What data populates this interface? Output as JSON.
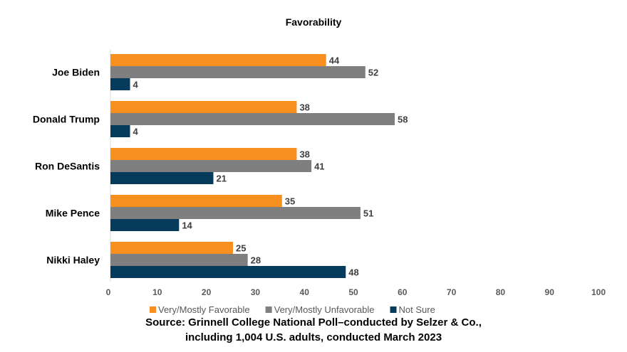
{
  "chart_data": {
    "type": "bar",
    "orientation": "horizontal",
    "title": "Favorability",
    "categories": [
      "Joe Biden",
      "Donald Trump",
      "Ron DeSantis",
      "Mike Pence",
      "Nikki Haley"
    ],
    "series": [
      {
        "name": "Very/Mostly Favorable",
        "color": "#F7901E",
        "values": [
          44,
          38,
          38,
          35,
          25
        ]
      },
      {
        "name": "Very/Mostly Unfavorable",
        "color": "#7F7F7F",
        "values": [
          52,
          58,
          41,
          51,
          28
        ]
      },
      {
        "name": "Not Sure",
        "color": "#073B5C",
        "values": [
          4,
          4,
          21,
          14,
          48
        ]
      }
    ],
    "xlim": [
      0,
      100
    ],
    "xticks": [
      0,
      10,
      20,
      30,
      40,
      50,
      60,
      70,
      80,
      90,
      100
    ],
    "grid": false,
    "legend": "bottom",
    "data_labels": true
  },
  "source": {
    "line1": "Source:  Grinnell College National Poll–conducted by Selzer & Co.,",
    "line2": "including 1,004 U.S. adults, conducted March 2023"
  }
}
